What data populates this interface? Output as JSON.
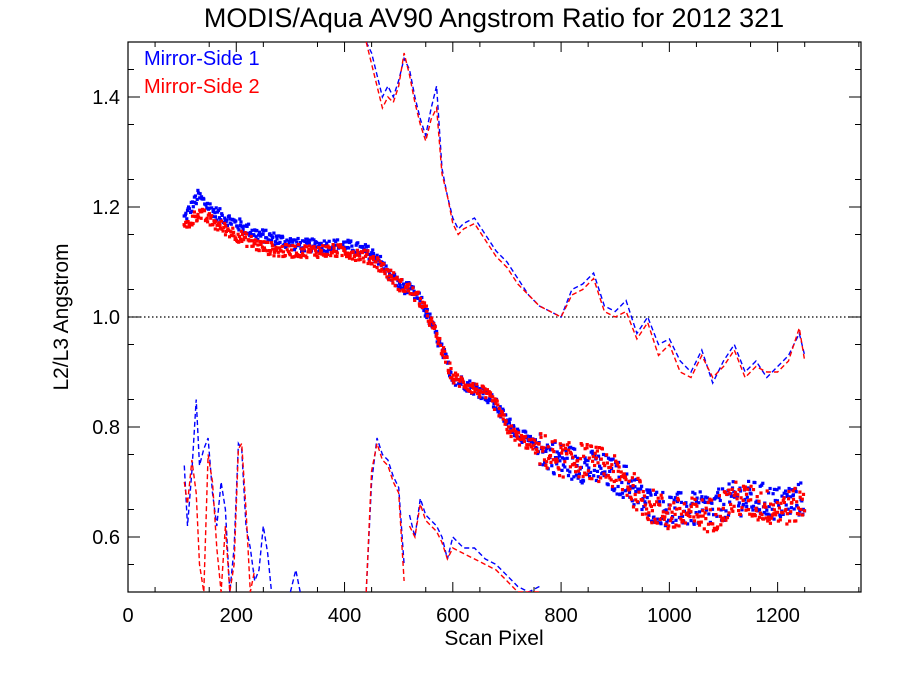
{
  "chart_data": {
    "type": "scatter",
    "title": "MODIS/Aqua AV90 Angstrom Ratio for 2012 321",
    "xlabel": "Scan Pixel",
    "ylabel": "L2/L3 Angstrom",
    "xlim": [
      0,
      1354
    ],
    "ylim": [
      0.5,
      1.5
    ],
    "x_ticks": [
      0,
      200,
      400,
      600,
      800,
      1000,
      1200
    ],
    "y_ticks": [
      0.6,
      0.8,
      1.0,
      1.2,
      1.4
    ],
    "x_tick_labels": [
      "0",
      "200",
      "400",
      "600",
      "800",
      "1000",
      "1200"
    ],
    "y_tick_labels": [
      "0.6",
      "0.8",
      "1.0",
      "1.2",
      "1.4"
    ],
    "reference_line": {
      "y": 1.0,
      "style": "dotted",
      "color": "#000000"
    },
    "legend_position": "top-left",
    "colors": {
      "side1": "#0000ff",
      "side2": "#ff0000"
    },
    "series": [
      {
        "name": "Mirror-Side 1",
        "color": "#0000ff",
        "mean": {
          "x": [
            104,
            130,
            160,
            200,
            240,
            280,
            320,
            360,
            400,
            440,
            460,
            480,
            500,
            520,
            540,
            560,
            580,
            600,
            620,
            640,
            660,
            680,
            700,
            720,
            760,
            800,
            840,
            880,
            920,
            960,
            1000,
            1040,
            1080,
            1120,
            1160,
            1200,
            1250
          ],
          "y": [
            1.18,
            1.22,
            1.19,
            1.17,
            1.15,
            1.14,
            1.13,
            1.13,
            1.13,
            1.12,
            1.11,
            1.08,
            1.06,
            1.05,
            1.03,
            0.99,
            0.94,
            0.89,
            0.88,
            0.87,
            0.86,
            0.84,
            0.81,
            0.79,
            0.76,
            0.74,
            0.73,
            0.72,
            0.7,
            0.66,
            0.65,
            0.65,
            0.65,
            0.67,
            0.67,
            0.66,
            0.67
          ]
        },
        "upper": {
          "x": [
            440,
            450,
            460,
            470,
            480,
            490,
            500,
            510,
            520,
            530,
            540,
            550,
            560,
            570,
            580,
            590,
            600,
            610,
            620,
            640,
            660,
            680,
            700,
            720,
            740,
            760,
            780,
            800,
            820,
            840,
            860,
            880,
            900,
            920,
            940,
            960,
            980,
            1000,
            1020,
            1040,
            1060,
            1080,
            1100,
            1120,
            1140,
            1160,
            1180,
            1200,
            1220,
            1240,
            1250
          ],
          "y": [
            1.5,
            1.48,
            1.44,
            1.4,
            1.42,
            1.4,
            1.43,
            1.47,
            1.45,
            1.4,
            1.36,
            1.33,
            1.38,
            1.42,
            1.27,
            1.22,
            1.18,
            1.16,
            1.17,
            1.18,
            1.15,
            1.12,
            1.1,
            1.07,
            1.04,
            1.02,
            1.01,
            1.0,
            1.05,
            1.06,
            1.08,
            1.02,
            1.01,
            1.03,
            0.97,
            1.0,
            0.95,
            0.96,
            0.92,
            0.9,
            0.94,
            0.88,
            0.92,
            0.95,
            0.9,
            0.92,
            0.89,
            0.91,
            0.93,
            0.97,
            0.93
          ]
        },
        "lower": {
          "segments": [
            {
              "x": [
                104,
                110,
                118,
                126,
                132,
                140,
                148,
                156,
                164,
                172,
                180,
                188,
                196,
                204,
                210,
                218,
                226,
                234,
                242,
                250,
                258,
                265
              ],
              "y": [
                0.73,
                0.62,
                0.72,
                0.85,
                0.73,
                0.76,
                0.78,
                0.68,
                0.62,
                0.7,
                0.65,
                0.5,
                0.58,
                0.77,
                0.76,
                0.62,
                0.58,
                0.52,
                0.54,
                0.62,
                0.57,
                0.5
              ]
            },
            {
              "x": [
                300,
                310,
                318
              ],
              "y": [
                0.5,
                0.54,
                0.5
              ]
            },
            {
              "x": [
                440,
                450,
                460,
                470,
                480,
                490,
                500,
                510
              ],
              "y": [
                0.5,
                0.7,
                0.78,
                0.75,
                0.74,
                0.71,
                0.69,
                0.55
              ]
            },
            {
              "x": [
                520,
                530,
                540,
                550,
                560,
                570,
                580,
                590,
                600,
                620,
                640,
                660,
                680,
                700,
                720,
                740,
                760
              ],
              "y": [
                0.64,
                0.6,
                0.67,
                0.64,
                0.63,
                0.62,
                0.6,
                0.56,
                0.6,
                0.58,
                0.58,
                0.56,
                0.55,
                0.53,
                0.51,
                0.5,
                0.51
              ]
            }
          ]
        }
      },
      {
        "name": "Mirror-Side 2",
        "color": "#ff0000",
        "mean": {
          "x": [
            104,
            130,
            160,
            200,
            240,
            280,
            320,
            360,
            400,
            440,
            460,
            480,
            500,
            520,
            540,
            560,
            580,
            600,
            620,
            640,
            660,
            680,
            700,
            720,
            760,
            800,
            840,
            880,
            920,
            960,
            1000,
            1040,
            1080,
            1120,
            1160,
            1200,
            1250
          ],
          "y": [
            1.16,
            1.19,
            1.17,
            1.15,
            1.13,
            1.12,
            1.12,
            1.12,
            1.12,
            1.11,
            1.1,
            1.08,
            1.06,
            1.05,
            1.03,
            0.99,
            0.94,
            0.89,
            0.88,
            0.87,
            0.86,
            0.84,
            0.8,
            0.78,
            0.76,
            0.74,
            0.74,
            0.73,
            0.7,
            0.66,
            0.64,
            0.64,
            0.64,
            0.67,
            0.66,
            0.65,
            0.66
          ]
        },
        "upper": {
          "x": [
            440,
            450,
            460,
            470,
            480,
            490,
            500,
            510,
            520,
            530,
            540,
            550,
            560,
            570,
            580,
            590,
            600,
            610,
            620,
            640,
            660,
            680,
            700,
            720,
            740,
            760,
            780,
            800,
            820,
            840,
            860,
            880,
            900,
            920,
            940,
            960,
            980,
            1000,
            1020,
            1040,
            1060,
            1080,
            1100,
            1120,
            1140,
            1160,
            1180,
            1200,
            1220,
            1240,
            1250
          ],
          "y": [
            1.5,
            1.46,
            1.42,
            1.38,
            1.4,
            1.39,
            1.42,
            1.48,
            1.44,
            1.39,
            1.35,
            1.32,
            1.36,
            1.38,
            1.26,
            1.22,
            1.17,
            1.15,
            1.16,
            1.17,
            1.14,
            1.11,
            1.09,
            1.06,
            1.04,
            1.02,
            1.01,
            1.0,
            1.04,
            1.05,
            1.07,
            1.01,
            1.0,
            1.01,
            0.96,
            0.99,
            0.93,
            0.95,
            0.9,
            0.89,
            0.93,
            0.89,
            0.91,
            0.94,
            0.89,
            0.91,
            0.9,
            0.9,
            0.92,
            0.98,
            0.92
          ]
        },
        "lower": {
          "segments": [
            {
              "x": [
                104,
                110,
                118,
                126,
                132,
                140,
                148,
                156,
                164,
                172,
                180,
                188,
                196,
                204,
                210,
                218,
                226,
                234
              ],
              "y": [
                0.7,
                0.66,
                0.74,
                0.68,
                0.55,
                0.5,
                0.75,
                0.7,
                0.58,
                0.5,
                0.62,
                0.5,
                0.55,
                0.76,
                0.77,
                0.65,
                0.5,
                0.54
              ]
            },
            {
              "x": [
                440,
                450,
                460,
                470,
                480,
                490,
                500,
                510
              ],
              "y": [
                0.5,
                0.72,
                0.77,
                0.74,
                0.73,
                0.7,
                0.68,
                0.52
              ]
            },
            {
              "x": [
                520,
                530,
                540,
                550,
                560,
                570,
                580,
                590,
                600,
                620,
                640,
                660,
                680,
                700,
                720,
                740,
                760
              ],
              "y": [
                0.62,
                0.6,
                0.66,
                0.63,
                0.62,
                0.61,
                0.59,
                0.56,
                0.58,
                0.57,
                0.56,
                0.55,
                0.54,
                0.52,
                0.5,
                0.5,
                0.5
              ]
            }
          ]
        }
      }
    ]
  }
}
